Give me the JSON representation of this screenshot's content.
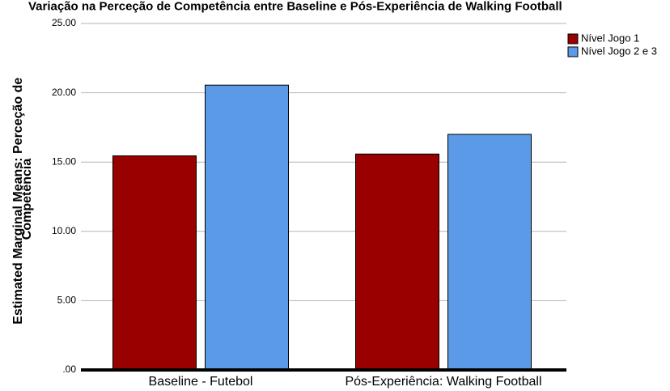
{
  "chart_data": {
    "type": "bar",
    "title": "Variação na Perceção de Competência entre Baseline e Pós-Experiência de Walking Football",
    "ylabel_lines": [
      "Estimated Marginal Means: Perceção de",
      "Competência"
    ],
    "xlabel": "",
    "categories": [
      "Baseline - Futebol",
      "Pós-Experiência: Walking Football"
    ],
    "series": [
      {
        "name": "Nível Jogo 1",
        "color": "#990000",
        "values": [
          15.45,
          15.58
        ]
      },
      {
        "name": "Nível Jogo 2 e 3",
        "color": "#5a9ae6",
        "values": [
          20.55,
          17.0
        ]
      }
    ],
    "ylim": [
      0,
      25
    ],
    "yticks": [
      0,
      5,
      10,
      15,
      20,
      25
    ],
    "ytick_labels": [
      ".00",
      "5.00",
      "10.00",
      "15.00",
      "20.00",
      "25.00"
    ],
    "grid": true,
    "legend_position": "top-right"
  }
}
